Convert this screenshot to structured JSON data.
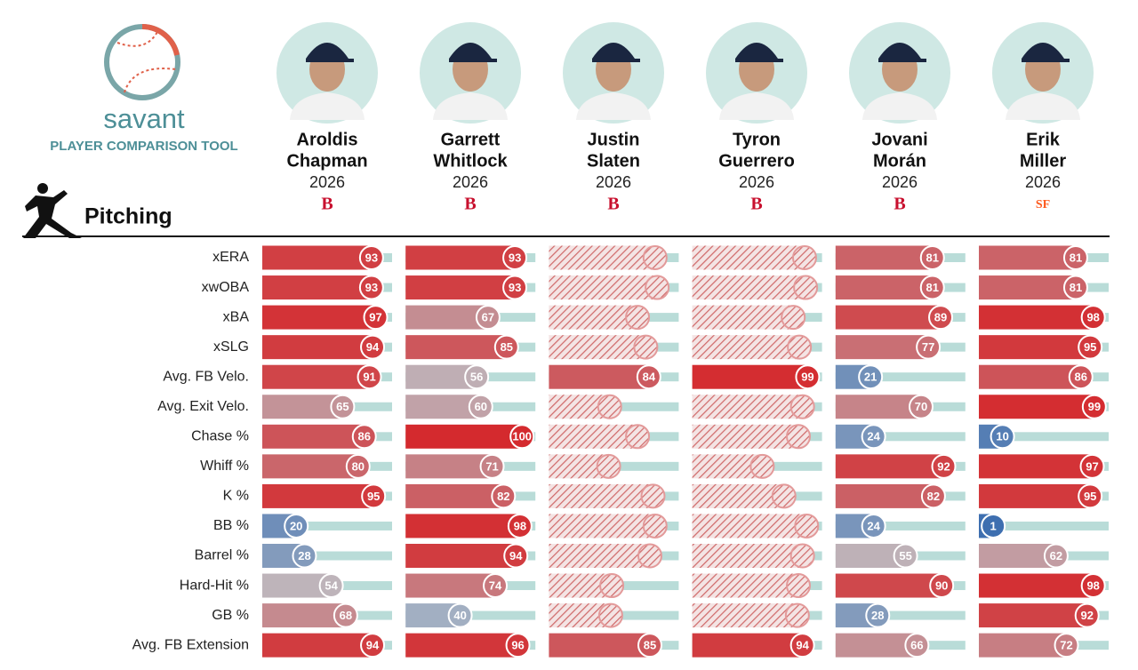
{
  "header": {
    "brand": "savant",
    "tool_name": "PLAYER COMPARISON TOOL",
    "section": "Pitching"
  },
  "metrics": [
    "xERA",
    "xwOBA",
    "xBA",
    "xSLG",
    "Avg. FB Velo.",
    "Avg. Exit Velo.",
    "Chase %",
    "Whiff %",
    "K %",
    "BB %",
    "Barrel %",
    "Hard-Hit %",
    "GB %",
    "Avg. FB Extension"
  ],
  "players": [
    {
      "first": "Aroldis",
      "last": "Chapman",
      "year": 2026,
      "team_logo": "B",
      "team_color": "#c8102e",
      "percentiles": [
        93,
        93,
        97,
        94,
        91,
        65,
        86,
        80,
        95,
        20,
        28,
        54,
        68,
        94
      ]
    },
    {
      "first": "Garrett",
      "last": "Whitlock",
      "year": 2026,
      "team_logo": "B",
      "team_color": "#c8102e",
      "percentiles": [
        93,
        93,
        67,
        85,
        56,
        60,
        100,
        71,
        82,
        98,
        94,
        74,
        40,
        96
      ]
    },
    {
      "first": "Justin",
      "last": "Slaten",
      "year": 2026,
      "team_logo": "B",
      "team_color": "#c8102e",
      "percentiles": [
        90,
        92,
        73,
        81,
        84,
        46,
        73,
        45,
        88,
        90,
        85,
        48,
        47,
        85
      ],
      "hatched": [
        true,
        true,
        true,
        true,
        false,
        true,
        true,
        true,
        true,
        true,
        true,
        true,
        true,
        false
      ]
    },
    {
      "first": "Tyron",
      "last": "Guerrero",
      "year": 2026,
      "team_logo": "B",
      "team_color": "#c8102e",
      "percentiles": [
        96,
        97,
        85,
        91,
        99,
        94,
        90,
        55,
        76,
        98,
        94,
        90,
        89,
        94
      ],
      "hatched": [
        true,
        true,
        true,
        true,
        false,
        true,
        true,
        true,
        true,
        true,
        true,
        true,
        true,
        false
      ]
    },
    {
      "first": "Jovani",
      "last": "Morán",
      "year": 2026,
      "team_logo": "B",
      "team_color": "#c8102e",
      "percentiles": [
        81,
        81,
        89,
        77,
        21,
        70,
        24,
        92,
        82,
        24,
        55,
        90,
        28,
        66
      ]
    },
    {
      "first": "Erik",
      "last": "Miller",
      "year": 2026,
      "team_logo": "SF",
      "team_color": "#fd5a1e",
      "percentiles": [
        81,
        81,
        98,
        95,
        86,
        99,
        10,
        97,
        95,
        1,
        62,
        98,
        92,
        72
      ]
    }
  ]
}
